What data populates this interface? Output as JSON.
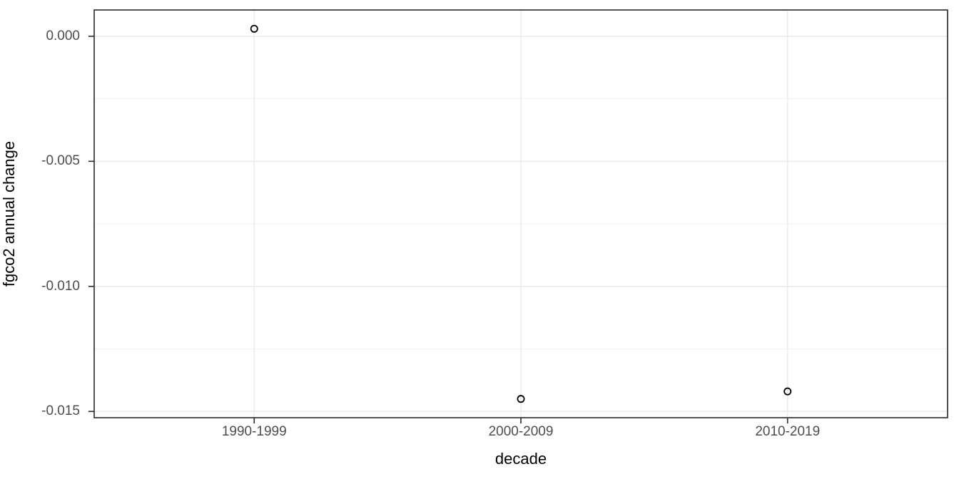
{
  "chart_data": {
    "type": "scatter",
    "title": "",
    "xlabel": "decade",
    "ylabel": "fgco2 annual change",
    "categories": [
      "1990-1999",
      "2000-2009",
      "2010-2019"
    ],
    "values": [
      0.0003,
      -0.0145,
      -0.0142
    ],
    "y_ticks": [
      {
        "value": 0.0,
        "label": "0.000"
      },
      {
        "value": -0.005,
        "label": "-0.005"
      },
      {
        "value": -0.01,
        "label": "-0.010"
      },
      {
        "value": -0.015,
        "label": "-0.015"
      }
    ],
    "y_minor_ticks": [
      -0.0025,
      -0.0075,
      -0.0125
    ],
    "ylim": [
      -0.01525,
      0.00105
    ],
    "grid": "horizontal major+minor, vertical major at categories",
    "legend": "none",
    "marker": "open-circle",
    "theme": {
      "background": "#ffffff",
      "panel_background": "#ffffff",
      "panel_border": "#343434",
      "grid_major": "#ebebeb",
      "grid_minor": "#f1f1f1",
      "tick_color": "#343434",
      "tick_label_color": "#4d4d4d",
      "axis_title_color": "#000000",
      "point_color": "#000000"
    }
  }
}
